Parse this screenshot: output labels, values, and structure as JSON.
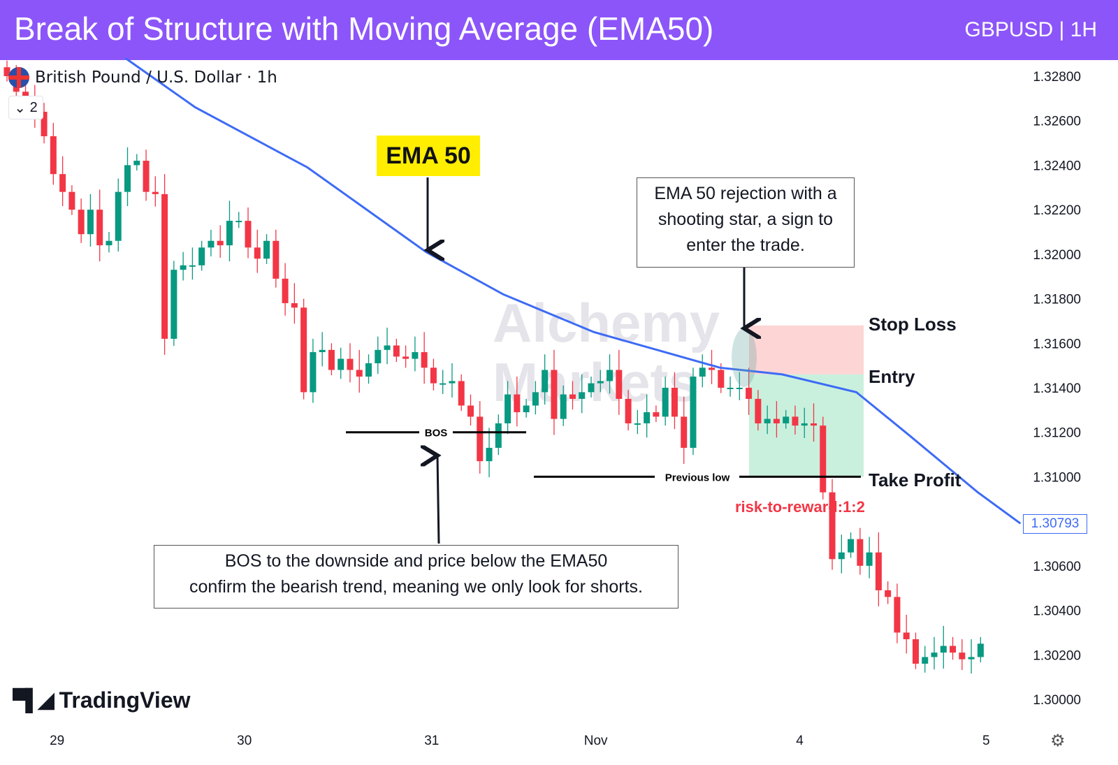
{
  "header": {
    "title": "Break of Structure with Moving Average (EMA50)",
    "symbol": "GBPUSD | 1H"
  },
  "legend": {
    "instrument": "British Pound / U.S. Dollar · 1h",
    "collapse_count": "2"
  },
  "watermark": {
    "line1": "Alchemy",
    "line2": "Markets"
  },
  "branding": {
    "logo": "TradingView"
  },
  "annotations": {
    "ema_label": "EMA 50",
    "rejection_note": [
      "EMA 50 rejection with a",
      "shooting star, a sign to",
      "enter the trade."
    ],
    "bos_label": "BOS",
    "previous_low_label": "Previous low",
    "bos_note": [
      "BOS to the downside and price below the EMA50",
      "confirm the bearish trend, meaning we only look for shorts."
    ],
    "stop_loss": "Stop Loss",
    "entry": "Entry",
    "take_profit": "Take Profit",
    "risk_reward": "risk-to-reward:1:2"
  },
  "colors": {
    "header": "#8c55f9",
    "up": "#089981",
    "down": "#f23645",
    "ema": "#3d6bf5",
    "sl_zone": "#fdd5d5",
    "tp_zone": "#c9f0dd"
  },
  "chart_data": {
    "type": "candlestick",
    "title": "Break of Structure with Moving Average (EMA50)",
    "ylim": [
      1.2992,
      1.3293
    ],
    "y_ticks": [
      "1.32800",
      "1.32600",
      "1.32400",
      "1.32200",
      "1.32000",
      "1.31800",
      "1.31600",
      "1.31400",
      "1.31200",
      "1.31000",
      "1.30600",
      "1.30400",
      "1.30200",
      "1.30000"
    ],
    "y_tick_values": [
      1.328,
      1.326,
      1.324,
      1.322,
      1.32,
      1.318,
      1.316,
      1.314,
      1.312,
      1.31,
      1.306,
      1.304,
      1.302,
      1.3
    ],
    "x_ticks": [
      {
        "label": "29",
        "index": 5.4
      },
      {
        "label": "30",
        "index": 25.6
      },
      {
        "label": "31",
        "index": 45.8
      },
      {
        "label": "Nov",
        "index": 63.5
      },
      {
        "label": "4",
        "index": 85.5
      },
      {
        "label": "5",
        "index": 105.6
      }
    ],
    "current_price": "1.30793",
    "closes": [
      1.328,
      1.3273,
      1.3267,
      1.3264,
      1.3253,
      1.3236,
      1.3228,
      1.322,
      1.3209,
      1.322,
      1.3204,
      1.3206,
      1.3228,
      1.324,
      1.3242,
      1.3228,
      1.3227,
      1.3162,
      1.3193,
      1.3195,
      1.3195,
      1.3203,
      1.3206,
      1.3204,
      1.3215,
      1.3215,
      1.3203,
      1.3198,
      1.3206,
      1.3189,
      1.3178,
      1.3176,
      1.3138,
      1.3156,
      1.3157,
      1.3148,
      1.3153,
      1.3148,
      1.3145,
      1.3151,
      1.3157,
      1.3159,
      1.3154,
      1.3153,
      1.3156,
      1.3149,
      1.3142,
      1.3142,
      1.3143,
      1.3132,
      1.3127,
      1.3107,
      1.3113,
      1.3124,
      1.3137,
      1.3129,
      1.3132,
      1.3138,
      1.3148,
      1.3126,
      1.3137,
      1.3135,
      1.3138,
      1.3142,
      1.3143,
      1.3148,
      1.3135,
      1.3124,
      1.3124,
      1.3129,
      1.3127,
      1.314,
      1.3127,
      1.3113,
      1.3145,
      1.3149,
      1.3148,
      1.314,
      1.314,
      1.314,
      1.3135,
      1.3124,
      1.3126,
      1.3124,
      1.3127,
      1.3123,
      1.3124,
      1.3123,
      1.3093,
      1.3063,
      1.3066,
      1.3072,
      1.306,
      1.3066,
      1.3049,
      1.3046,
      1.303,
      1.3027,
      1.3016,
      1.3019,
      1.3021,
      1.3024,
      1.3021,
      1.3018,
      1.3019,
      1.3025
    ],
    "ema50": [
      {
        "index": 12.8,
        "value": 1.3288
      },
      {
        "index": 20.3,
        "value": 1.3266
      },
      {
        "index": 32.4,
        "value": 1.3239
      },
      {
        "index": 45.2,
        "value": 1.3201
      },
      {
        "index": 53.5,
        "value": 1.3182
      },
      {
        "index": 63.3,
        "value": 1.3165
      },
      {
        "index": 70.1,
        "value": 1.3157
      },
      {
        "index": 76.9,
        "value": 1.3149
      },
      {
        "index": 83.6,
        "value": 1.3146
      },
      {
        "index": 91.6,
        "value": 1.3138
      },
      {
        "index": 97.2,
        "value": 1.3119
      },
      {
        "index": 104.7,
        "value": 1.3093
      },
      {
        "index": 109.3,
        "value": 1.3079
      }
    ],
    "levels": {
      "bos": 1.312,
      "previous_low": 1.31,
      "stop_loss": 1.3168,
      "entry": 1.3146,
      "take_profit": 1.31
    }
  }
}
